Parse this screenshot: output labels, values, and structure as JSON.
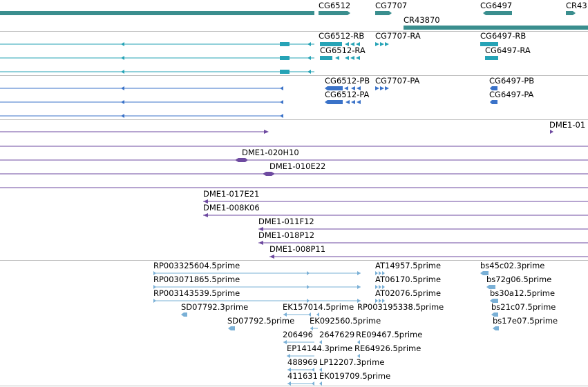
{
  "colors": {
    "gene": "#3a8e8e",
    "transcript": "#26a3b6",
    "protein": "#3a72c8",
    "clone": "#6e4aa0",
    "est": "#7ab0d6",
    "separator": "#c0c0c0"
  },
  "genes": [
    {
      "name": "CG6512",
      "label": "CG6512"
    },
    {
      "name": "CG7707",
      "label": "CG7707"
    },
    {
      "name": "CG6497",
      "label": "CG6497"
    },
    {
      "name": "CR43870",
      "label": "CR43870"
    },
    {
      "name": "CR43-cut",
      "label": "CR43"
    }
  ],
  "transcripts": [
    {
      "label": "CG6512-RB"
    },
    {
      "label": "CG6512-RA"
    },
    {
      "label": "CG7707-RA"
    },
    {
      "label": "CG6497-RB"
    },
    {
      "label": "CG6497-RA"
    }
  ],
  "proteins": [
    {
      "label": "CG6512-PB"
    },
    {
      "label": "CG6512-PA"
    },
    {
      "label": "CG7707-PA"
    },
    {
      "label": "CG6497-PB"
    },
    {
      "label": "CG6497-PA"
    }
  ],
  "clones": [
    {
      "label": "DME1-01"
    },
    {
      "label": "DME1-020H10"
    },
    {
      "label": "DME1-010E22"
    },
    {
      "label": "DME1-017E21"
    },
    {
      "label": "DME1-008K06"
    },
    {
      "label": "DME1-011F12"
    },
    {
      "label": "DME1-018P12"
    },
    {
      "label": "DME1-008P11"
    }
  ],
  "ests": [
    {
      "label": "RP003325604.5prime"
    },
    {
      "label": "RP003071865.5prime"
    },
    {
      "label": "RP003143539.5prime"
    },
    {
      "label": "SD07792.3prime"
    },
    {
      "label": "SD07792.5prime"
    },
    {
      "label": "EK157014.5prime"
    },
    {
      "label": "EK092560.5prime"
    },
    {
      "label": "RP003195338.5prime"
    },
    {
      "label": "AT14957.5prime"
    },
    {
      "label": "AT06170.5prime"
    },
    {
      "label": "AT02076.5prime"
    },
    {
      "label": "206496"
    },
    {
      "label": "2647629"
    },
    {
      "label": "RE09467.5prime"
    },
    {
      "label": "EP14144.3prime"
    },
    {
      "label": "RE64926.5prime"
    },
    {
      "label": "488969"
    },
    {
      "label": "LP12207.3prime"
    },
    {
      "label": "411631"
    },
    {
      "label": "EK019709.5prime"
    },
    {
      "label": "bs45c02.3prime"
    },
    {
      "label": "bs72g06.5prime"
    },
    {
      "label": "bs30a12.5prime"
    },
    {
      "label": "bs21c07.5prime"
    },
    {
      "label": "bs17e07.5prime"
    }
  ]
}
